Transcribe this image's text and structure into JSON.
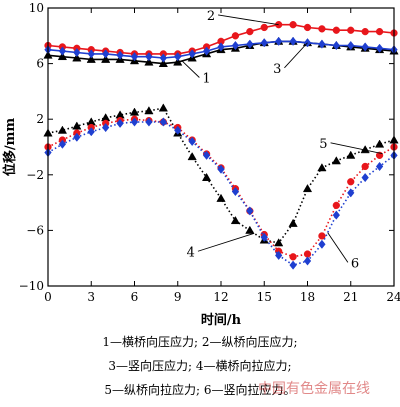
{
  "chart_data": {
    "type": "line",
    "xlabel": "时间/h",
    "ylabel": "位移/mm",
    "xlim": [
      0,
      24
    ],
    "ylim": [
      -10,
      10
    ],
    "xticks": [
      0,
      3,
      6,
      9,
      12,
      15,
      18,
      21,
      24
    ],
    "yticks": [
      -10,
      -6,
      -2,
      2,
      6,
      10
    ],
    "grid": false,
    "x": [
      0,
      1,
      2,
      3,
      4,
      5,
      6,
      7,
      8,
      9,
      10,
      11,
      12,
      13,
      14,
      15,
      16,
      17,
      18,
      19,
      20,
      21,
      22,
      23,
      24
    ],
    "series": [
      {
        "name": "1",
        "color": "#000000",
        "marker": "triangle",
        "linestyle": "solid",
        "values": [
          6.6,
          6.5,
          6.4,
          6.3,
          6.3,
          6.3,
          6.2,
          6.1,
          6.0,
          6.1,
          6.4,
          6.7,
          7.0,
          7.1,
          7.3,
          7.5,
          7.6,
          7.6,
          7.5,
          7.4,
          7.3,
          7.2,
          7.1,
          7.0,
          6.9
        ]
      },
      {
        "name": "2",
        "color": "#e8161b",
        "marker": "circle",
        "linestyle": "solid",
        "values": [
          7.3,
          7.2,
          7.1,
          7.0,
          6.9,
          6.8,
          6.7,
          6.7,
          6.7,
          6.7,
          6.9,
          7.2,
          7.6,
          8.0,
          8.3,
          8.6,
          8.8,
          8.8,
          8.6,
          8.5,
          8.4,
          8.4,
          8.3,
          8.3,
          8.2
        ]
      },
      {
        "name": "3",
        "color": "#1f3fd0",
        "marker": "diamond",
        "linestyle": "solid",
        "values": [
          7.0,
          6.9,
          6.8,
          6.7,
          6.7,
          6.6,
          6.5,
          6.5,
          6.4,
          6.5,
          6.7,
          6.9,
          7.2,
          7.3,
          7.4,
          7.5,
          7.6,
          7.6,
          7.5,
          7.4,
          7.3,
          7.3,
          7.2,
          7.1,
          7.0
        ]
      },
      {
        "name": "4",
        "color": "#000000",
        "marker": "triangle",
        "linestyle": "dotted",
        "values": [
          1.0,
          1.2,
          1.5,
          1.8,
          2.1,
          2.3,
          2.5,
          2.6,
          2.8,
          1.0,
          -0.7,
          -2.2,
          -3.7,
          -5.3,
          -6.0,
          -6.7,
          -6.9,
          -5.5,
          -3.0,
          -1.5,
          -1.0,
          -0.6,
          -0.2,
          0.2,
          0.5
        ]
      },
      {
        "name": "5",
        "color": "#e8161b",
        "marker": "circle",
        "linestyle": "dotted",
        "values": [
          0.0,
          0.5,
          1.0,
          1.4,
          1.7,
          1.9,
          2.0,
          1.9,
          1.8,
          1.4,
          0.5,
          -0.5,
          -1.5,
          -3.0,
          -4.6,
          -6.3,
          -7.5,
          -7.9,
          -7.7,
          -6.4,
          -4.2,
          -2.5,
          -1.4,
          -0.6,
          0.0
        ]
      },
      {
        "name": "6",
        "color": "#1f3fd0",
        "marker": "diamond",
        "linestyle": "dotted",
        "values": [
          -0.4,
          0.2,
          0.7,
          1.1,
          1.4,
          1.7,
          1.8,
          1.8,
          1.8,
          1.2,
          0.4,
          -0.6,
          -1.6,
          -3.2,
          -4.6,
          -6.5,
          -7.8,
          -8.5,
          -8.2,
          -7.0,
          -4.9,
          -3.3,
          -2.2,
          -1.4,
          -0.6
        ]
      }
    ],
    "callouts": [
      {
        "text": "1",
        "series_index": 0,
        "x": 9.3,
        "label_x": 10.5,
        "label_y": 5.0
      },
      {
        "text": "2",
        "series_index": 1,
        "x": 16.0,
        "label_x": 11.8,
        "label_y": 9.5
      },
      {
        "text": "3",
        "series_index": 2,
        "x": 18.0,
        "label_x": 16.4,
        "label_y": 5.7
      },
      {
        "text": "4",
        "series_index": 3,
        "x": 14.3,
        "label_x": 10.4,
        "label_y": -7.5
      },
      {
        "text": "5",
        "series_index": 4,
        "x": 23.2,
        "label_x": 19.6,
        "label_y": 0.3
      },
      {
        "text": "6",
        "series_index": 5,
        "x": 19.4,
        "label_x": 20.8,
        "label_y": -8.3
      }
    ]
  },
  "legend": {
    "line1": "1—横桥向压应力; 2—纵桥向压应力;",
    "line2": "3—竖向压应力; 4—横桥向拉应力;",
    "line3": "5—纵桥向拉应力; 6—竖向拉应力。"
  },
  "watermark": "中国有色金属在线"
}
